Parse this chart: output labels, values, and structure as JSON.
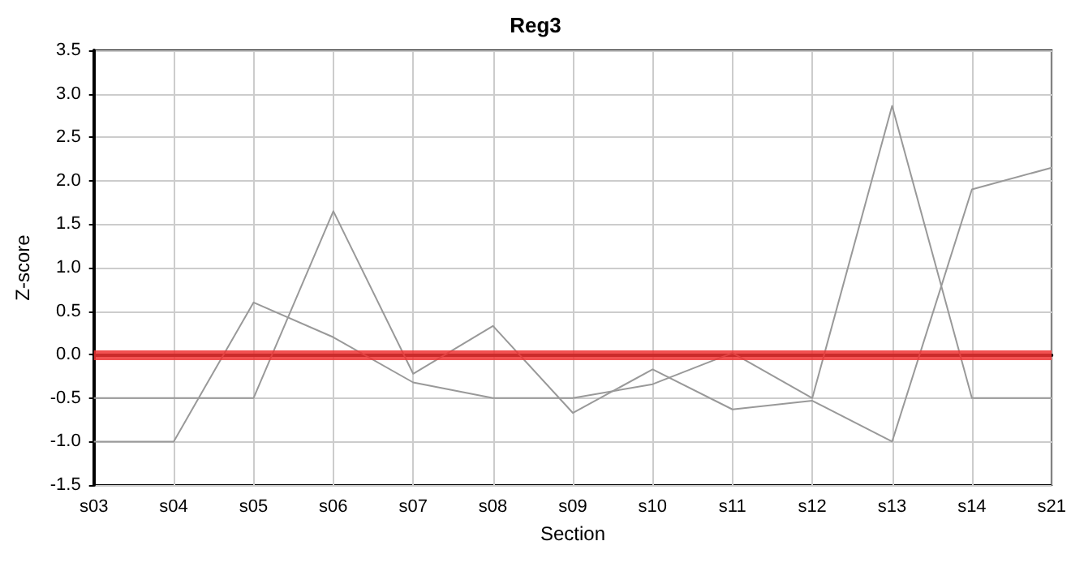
{
  "chart_data": {
    "type": "line",
    "title": "Reg3",
    "xlabel": "Section",
    "ylabel": "Z-score",
    "categories": [
      "s03",
      "s04",
      "s05",
      "s06",
      "s07",
      "s08",
      "s09",
      "s10",
      "s11",
      "s12",
      "s13",
      "s14",
      "s21"
    ],
    "series": [
      {
        "color": "#999999",
        "values": [
          -0.5,
          -0.5,
          -0.5,
          1.65,
          -0.22,
          0.33,
          -0.67,
          -0.17,
          -0.63,
          -0.53,
          -1.0,
          1.9,
          2.15
        ]
      },
      {
        "color": "#999999",
        "values": [
          -1.0,
          -1.0,
          0.6,
          0.2,
          -0.32,
          -0.5,
          -0.5,
          -0.34,
          0.02,
          -0.5,
          2.86,
          -0.5,
          -0.5
        ]
      }
    ],
    "ylim": [
      -1.5,
      3.5
    ],
    "yticks": [
      -1.5,
      {
        "value": -1,
        "label": "-1.0"
      },
      -0.5,
      {
        "value": 0,
        "label": "0.0"
      },
      0.5,
      {
        "value": 1,
        "label": "1.0"
      },
      1.5,
      {
        "value": 2,
        "label": "2.0"
      },
      2.5,
      {
        "value": 3,
        "label": "3.0"
      },
      3.5
    ],
    "ref_lines": [
      {
        "axis": "y",
        "value": 0,
        "color": "#ee3333"
      }
    ],
    "grid": true,
    "marker": "none",
    "line_style": "solid"
  }
}
